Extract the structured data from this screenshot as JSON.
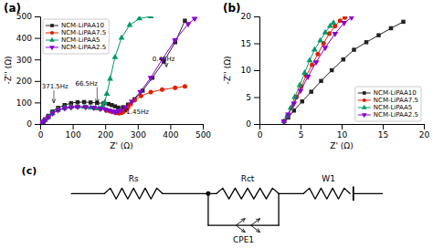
{
  "chart_data": [
    {
      "type": "line",
      "title": "(a)",
      "x_label": "Z' (Ω)",
      "y_label": "-Z'' (Ω)",
      "xlim": [
        0,
        500
      ],
      "ylim": [
        0,
        500
      ],
      "xticks": [
        0,
        100,
        200,
        300,
        400,
        500
      ],
      "yticks": [
        0,
        100,
        200,
        300,
        400,
        500
      ],
      "grid": false,
      "legend": "upper left",
      "series": [
        {
          "name": "NCM-LiPAA10",
          "color": "#222222",
          "marker": "square",
          "x": [
            3,
            8,
            15,
            25,
            38,
            55,
            75,
            95,
            115,
            135,
            155,
            175,
            195,
            210,
            220,
            230,
            240,
            255,
            270,
            290,
            315,
            345,
            380,
            415,
            445
          ],
          "values": [
            2,
            10,
            22,
            38,
            58,
            75,
            88,
            97,
            101,
            102,
            100,
            98,
            96,
            93,
            88,
            82,
            76,
            78,
            90,
            115,
            155,
            215,
            290,
            380,
            480
          ]
        },
        {
          "name": "NCM-LiPAA7.5",
          "color": "#dd2200",
          "marker": "circle",
          "x": [
            3,
            8,
            15,
            25,
            38,
            55,
            75,
            95,
            115,
            140,
            165,
            185,
            205,
            220,
            232,
            242,
            250,
            255,
            260,
            265,
            270,
            278,
            290,
            310,
            340,
            375,
            415,
            445
          ],
          "values": [
            2,
            8,
            18,
            32,
            50,
            65,
            74,
            79,
            80,
            79,
            75,
            70,
            63,
            57,
            52,
            50,
            52,
            56,
            62,
            70,
            78,
            92,
            110,
            130,
            148,
            160,
            168,
            175
          ]
        },
        {
          "name": "NCM-LiPAA5",
          "color": "#009966",
          "marker": "triangle-up",
          "x": [
            3,
            8,
            15,
            25,
            38,
            55,
            75,
            95,
            115,
            135,
            155,
            170,
            180,
            188,
            193,
            198,
            205,
            215,
            230,
            250,
            275,
            305,
            340
          ],
          "values": [
            2,
            8,
            18,
            32,
            50,
            65,
            74,
            79,
            80,
            79,
            76,
            73,
            72,
            75,
            82,
            100,
            140,
            210,
            310,
            400,
            460,
            490,
            500
          ]
        },
        {
          "name": "NCM-LiPAA2.5",
          "color": "#8800cc",
          "marker": "triangle-down",
          "x": [
            3,
            8,
            15,
            25,
            38,
            55,
            75,
            95,
            115,
            140,
            165,
            185,
            200,
            212,
            222,
            230,
            238,
            248,
            262,
            282,
            308,
            340,
            375,
            415,
            455,
            475
          ],
          "values": [
            2,
            8,
            18,
            32,
            50,
            65,
            74,
            78,
            80,
            79,
            76,
            72,
            68,
            64,
            60,
            57,
            58,
            64,
            78,
            105,
            150,
            215,
            300,
            390,
            465,
            490
          ]
        }
      ],
      "annotations": [
        {
          "text": "371.5Hz",
          "x": 42,
          "y": 98,
          "text_x": 5,
          "text_y": 165
        },
        {
          "text": "66.5Hz",
          "x": 175,
          "y": 98,
          "text_x": 108,
          "text_y": 180
        },
        {
          "text": "0.45Hz",
          "x": 388,
          "y": 265,
          "text_x": 345,
          "text_y": 292
        },
        {
          "text": "1.45Hz",
          "x": 258,
          "y": 62,
          "text_x": 265,
          "text_y": 45
        }
      ]
    },
    {
      "type": "line",
      "title": "(b)",
      "x_label": "Z' (Ω)",
      "y_label": "-Z'' (Ω)",
      "xlim": [
        0,
        20
      ],
      "ylim": [
        0,
        20
      ],
      "xticks": [
        0,
        5,
        10,
        15,
        20
      ],
      "yticks": [
        0,
        5,
        10,
        15,
        20
      ],
      "grid": false,
      "legend": "lower right",
      "series": [
        {
          "name": "NCM-LiPAA10",
          "color": "#222222",
          "marker": "square",
          "x": [
            3.0,
            3.5,
            4.2,
            5.2,
            6.3,
            7.5,
            8.8,
            10.2,
            11.5,
            13.0,
            14.5,
            16.0,
            17.5
          ],
          "values": [
            0.5,
            1.2,
            2.5,
            4.2,
            6.0,
            8.0,
            10.0,
            12.0,
            13.8,
            15.2,
            16.5,
            17.8,
            19.0
          ]
        },
        {
          "name": "NCM-LiPAA7.5",
          "color": "#dd2200",
          "marker": "circle",
          "x": [
            3.0,
            3.4,
            3.9,
            4.5,
            5.1,
            5.7,
            6.4,
            7.1,
            7.8,
            8.5,
            9.2,
            9.8,
            10.4
          ],
          "values": [
            0.5,
            1.5,
            3.0,
            5.0,
            7.0,
            9.0,
            11.0,
            13.0,
            15.0,
            16.8,
            18.2,
            19.2,
            19.8
          ]
        },
        {
          "name": "NCM-LiPAA5",
          "color": "#009966",
          "marker": "triangle-up",
          "x": [
            3.0,
            3.4,
            3.8,
            4.3,
            4.9,
            5.5,
            6.1,
            6.7,
            7.4,
            8.0,
            8.6,
            9.0
          ],
          "values": [
            0.5,
            1.5,
            3.0,
            5.0,
            7.2,
            9.5,
            11.8,
            13.8,
            15.5,
            17.0,
            18.2,
            18.8
          ]
        },
        {
          "name": "NCM-LiPAA2.5",
          "color": "#8800cc",
          "marker": "triangle-down",
          "x": [
            3.0,
            3.5,
            4.2,
            5.0,
            5.9,
            6.9,
            8.0,
            9.2,
            10.3,
            11.2
          ],
          "values": [
            0.5,
            1.8,
            3.8,
            6.2,
            8.8,
            11.5,
            14.2,
            16.8,
            18.8,
            19.8
          ]
        }
      ]
    },
    {
      "type": "diagram",
      "title": "(c)",
      "labels": [
        "Rs",
        "Rct",
        "W1",
        "CPE1"
      ]
    }
  ]
}
